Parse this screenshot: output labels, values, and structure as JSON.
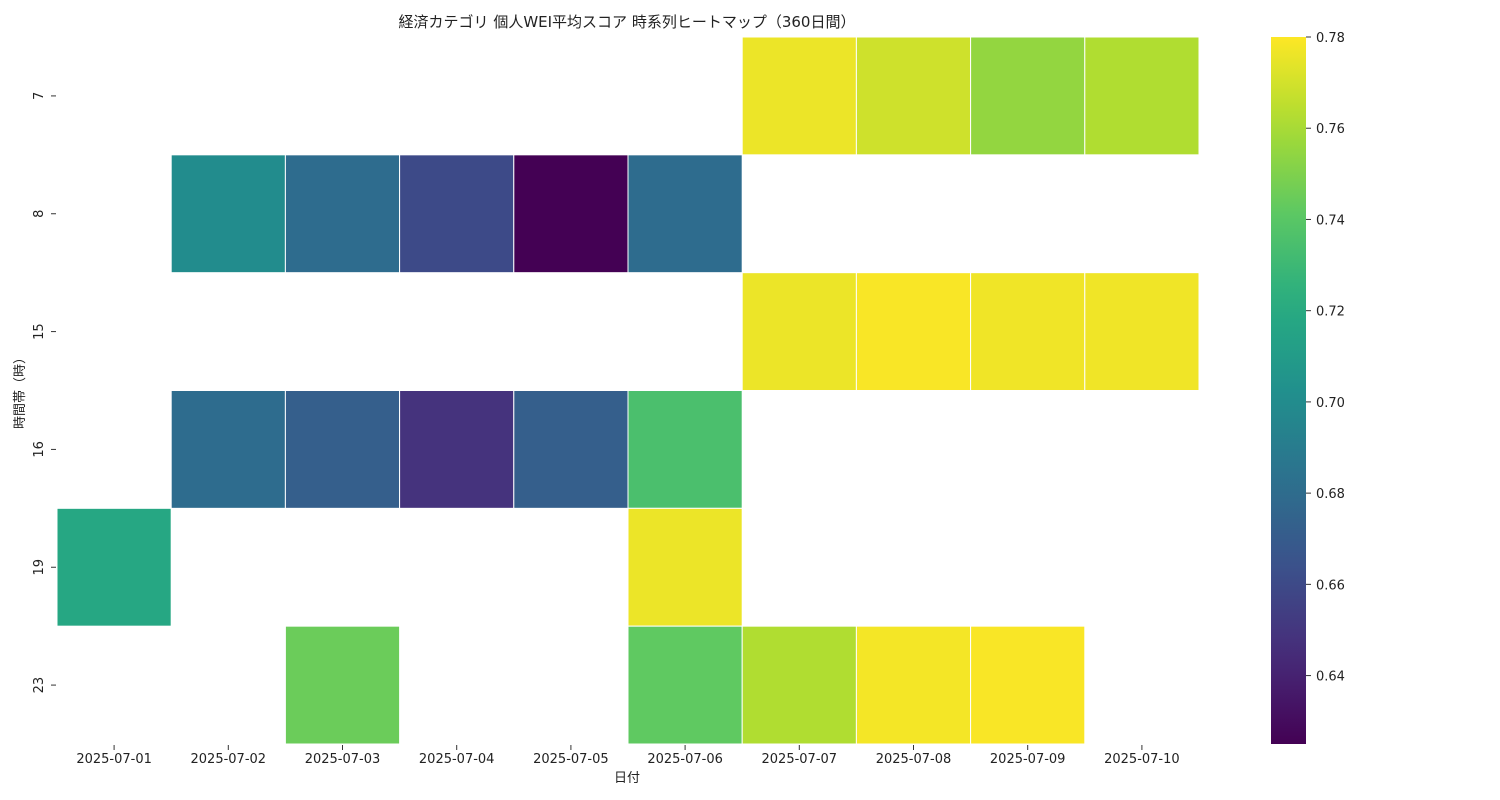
{
  "chart_data": {
    "type": "heatmap",
    "title": "経済カテゴリ 個人WEI平均スコア 時系列ヒートマップ（360日間）",
    "xlabel": "日付",
    "ylabel": "時間帯（時）",
    "x_categories": [
      "2025-07-01",
      "2025-07-02",
      "2025-07-03",
      "2025-07-04",
      "2025-07-05",
      "2025-07-06",
      "2025-07-07",
      "2025-07-08",
      "2025-07-09",
      "2025-07-10"
    ],
    "y_categories": [
      "7",
      "8",
      "15",
      "16",
      "19",
      "23"
    ],
    "values": [
      [
        null,
        null,
        null,
        null,
        null,
        null,
        0.776,
        0.769,
        0.755,
        0.762
      ],
      [
        null,
        0.7,
        0.68,
        0.66,
        0.625,
        0.68,
        null,
        null,
        null,
        null
      ],
      [
        null,
        null,
        null,
        null,
        null,
        null,
        0.776,
        0.779,
        0.777,
        0.777
      ],
      [
        null,
        0.68,
        0.672,
        0.648,
        0.672,
        0.735,
        null,
        null,
        null,
        null
      ],
      [
        0.718,
        null,
        null,
        null,
        null,
        0.776,
        null,
        null,
        null,
        null
      ],
      [
        null,
        null,
        0.745,
        null,
        null,
        0.742,
        0.762,
        0.778,
        0.779,
        null
      ]
    ],
    "colorscale": "viridis",
    "colorbar": {
      "min": 0.625,
      "max": 0.78,
      "ticks": [
        "0.64",
        "0.66",
        "0.68",
        "0.70",
        "0.72",
        "0.74",
        "0.76",
        "0.78"
      ]
    }
  }
}
